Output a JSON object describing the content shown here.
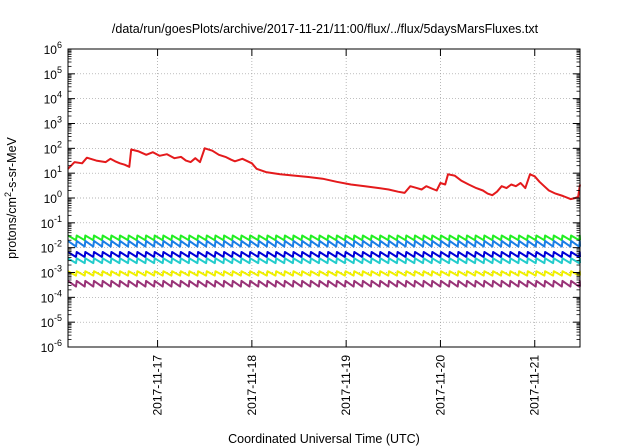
{
  "chart_data": {
    "type": "line",
    "title": "/data/run/goesPlots/archive/2017-11-21/11:00/flux/../flux/5daysMarsFluxes.txt",
    "xlabel": "Coordinated Universal Time (UTC)",
    "ylabel": {
      "prefix": "protons/cm",
      "sup": "2",
      "suffix": "-s-sr-MeV"
    },
    "y_scale": "log",
    "ylim_exponents": [
      -6,
      6
    ],
    "y_tick_labels": [
      {
        "base": "10",
        "exp": "-6"
      },
      {
        "base": "10",
        "exp": "-5"
      },
      {
        "base": "10",
        "exp": "-4"
      },
      {
        "base": "10",
        "exp": "-3"
      },
      {
        "base": "10",
        "exp": "-2"
      },
      {
        "base": "10",
        "exp": "-1"
      },
      {
        "base": "10",
        "exp": "0"
      },
      {
        "base": "10",
        "exp": "1"
      },
      {
        "base": "10",
        "exp": "2"
      },
      {
        "base": "10",
        "exp": "3"
      },
      {
        "base": "10",
        "exp": "4"
      },
      {
        "base": "10",
        "exp": "5"
      },
      {
        "base": "10",
        "exp": "6"
      }
    ],
    "x_axis": {
      "unit": "days",
      "range_days_from_2017-11-16T00": [
        0.05,
        5.48
      ],
      "ticks": [
        {
          "label": "2017-11-17",
          "day": 1
        },
        {
          "label": "2017-11-18",
          "day": 2
        },
        {
          "label": "2017-11-19",
          "day": 3
        },
        {
          "label": "2017-11-20",
          "day": 4
        },
        {
          "label": "2017-11-21",
          "day": 5
        }
      ]
    },
    "grid": true,
    "legend": "none",
    "series": [
      {
        "color": "#e41a1c",
        "points": [
          [
            0.05,
            15
          ],
          [
            0.12,
            28
          ],
          [
            0.2,
            25
          ],
          [
            0.25,
            42
          ],
          [
            0.35,
            32
          ],
          [
            0.45,
            28
          ],
          [
            0.5,
            38
          ],
          [
            0.55,
            30
          ],
          [
            0.6,
            25
          ],
          [
            0.65,
            22
          ],
          [
            0.7,
            18
          ],
          [
            0.72,
            90
          ],
          [
            0.8,
            75
          ],
          [
            0.88,
            55
          ],
          [
            0.95,
            70
          ],
          [
            1.02,
            50
          ],
          [
            1.1,
            58
          ],
          [
            1.18,
            40
          ],
          [
            1.25,
            45
          ],
          [
            1.3,
            32
          ],
          [
            1.35,
            28
          ],
          [
            1.4,
            40
          ],
          [
            1.45,
            28
          ],
          [
            1.5,
            100
          ],
          [
            1.58,
            80
          ],
          [
            1.65,
            55
          ],
          [
            1.72,
            45
          ],
          [
            1.78,
            35
          ],
          [
            1.82,
            30
          ],
          [
            1.9,
            38
          ],
          [
            2.0,
            25
          ],
          [
            2.05,
            15
          ],
          [
            2.15,
            11
          ],
          [
            2.3,
            9
          ],
          [
            2.45,
            8
          ],
          [
            2.6,
            7
          ],
          [
            2.75,
            6
          ],
          [
            2.9,
            4.5
          ],
          [
            3.05,
            3.5
          ],
          [
            3.2,
            3
          ],
          [
            3.35,
            2.5
          ],
          [
            3.45,
            2.2
          ],
          [
            3.55,
            1.8
          ],
          [
            3.62,
            1.6
          ],
          [
            3.68,
            3
          ],
          [
            3.75,
            2.5
          ],
          [
            3.8,
            2.2
          ],
          [
            3.85,
            3
          ],
          [
            3.92,
            2.3
          ],
          [
            3.96,
            2
          ],
          [
            4.0,
            4
          ],
          [
            4.05,
            3.5
          ],
          [
            4.08,
            9
          ],
          [
            4.15,
            8
          ],
          [
            4.22,
            5
          ],
          [
            4.3,
            3.5
          ],
          [
            4.38,
            2.5
          ],
          [
            4.45,
            2
          ],
          [
            4.5,
            1.5
          ],
          [
            4.55,
            1.3
          ],
          [
            4.6,
            1.8
          ],
          [
            4.65,
            3
          ],
          [
            4.7,
            2.5
          ],
          [
            4.75,
            3.5
          ],
          [
            4.8,
            3
          ],
          [
            4.85,
            4
          ],
          [
            4.9,
            2.5
          ],
          [
            4.95,
            9
          ],
          [
            5.0,
            7.5
          ],
          [
            5.05,
            4.5
          ],
          [
            5.1,
            3
          ],
          [
            5.15,
            2
          ],
          [
            5.22,
            1.5
          ],
          [
            5.3,
            1.2
          ],
          [
            5.38,
            0.9
          ],
          [
            5.43,
            1.0
          ],
          [
            5.46,
            1.1
          ],
          [
            5.48,
            3.5
          ]
        ]
      },
      {
        "color": "#22ee22",
        "sawtooth": {
          "base": 0.02,
          "amplitude": 1.55,
          "spacing_days": 0.092,
          "start_day": 0.05,
          "end_day": 5.48
        }
      },
      {
        "color": "#1a7fe6",
        "sawtooth": {
          "base": 0.011,
          "amplitude": 1.7,
          "spacing_days": 0.092,
          "start_day": 0.05,
          "end_day": 5.48
        }
      },
      {
        "color": "#0000d8",
        "sawtooth": {
          "base": 0.0042,
          "amplitude": 1.6,
          "spacing_days": 0.092,
          "start_day": 0.05,
          "end_day": 5.48
        }
      },
      {
        "color": "#22cccc",
        "sawtooth": {
          "base": 0.0024,
          "amplitude": 1.55,
          "spacing_days": 0.092,
          "start_day": 0.05,
          "end_day": 5.48
        }
      },
      {
        "color": "#f0f000",
        "sawtooth": {
          "base": 0.00075,
          "amplitude": 1.5,
          "spacing_days": 0.092,
          "start_day": 0.05,
          "end_day": 5.48
        }
      },
      {
        "color": "#993377",
        "sawtooth": {
          "base": 0.00027,
          "amplitude": 1.7,
          "spacing_days": 0.092,
          "start_day": 0.05,
          "end_day": 5.48
        }
      }
    ]
  }
}
